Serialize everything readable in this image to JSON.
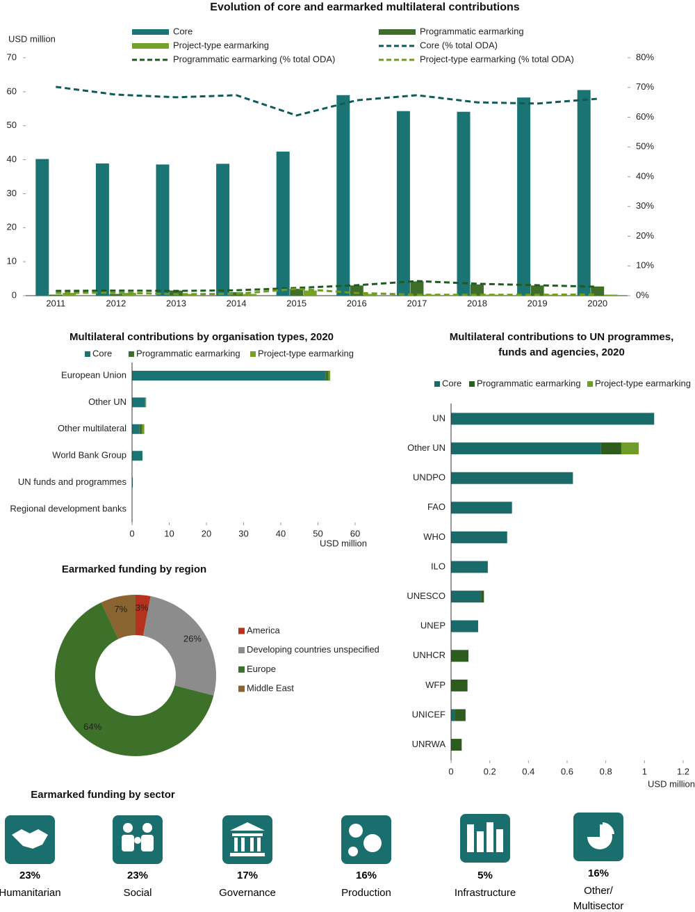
{
  "chart_data": [
    {
      "type": "bar",
      "title": "Evolution of core and earmarked multilateral contributions",
      "y_label": "USD million",
      "categories": [
        "2011",
        "2012",
        "2013",
        "2014",
        "2015",
        "2016",
        "2017",
        "2018",
        "2019",
        "2020"
      ],
      "ylim": [
        0,
        70
      ],
      "yticks": [
        0,
        10,
        20,
        30,
        40,
        50,
        60,
        70
      ],
      "y2lim": [
        0,
        80
      ],
      "y2ticks": [
        {
          "value": 0,
          "label": "0%"
        },
        {
          "value": 10,
          "label": "10%"
        },
        {
          "value": 20,
          "label": "20%"
        },
        {
          "value": 30,
          "label": "30%"
        },
        {
          "value": 40,
          "label": "40%"
        },
        {
          "value": 50,
          "label": "50%"
        },
        {
          "value": 60,
          "label": "60%"
        },
        {
          "value": 70,
          "label": "70%"
        },
        {
          "value": 80,
          "label": "80%"
        }
      ],
      "series": [
        {
          "name": "Core",
          "type": "bar",
          "color": "#1a7474",
          "values": [
            40.2,
            38.9,
            38.6,
            38.8,
            42.4,
            59.0,
            54.3,
            54.1,
            58.3,
            60.5
          ]
        },
        {
          "name": "Programmatic earmarking",
          "type": "bar",
          "color": "#3e6e2a",
          "values": [
            0.3,
            0.5,
            1.5,
            1.0,
            2.0,
            3.0,
            4.2,
            3.3,
            3.0,
            2.7
          ]
        },
        {
          "name": "Project-type earmarking",
          "type": "bar",
          "color": "#76a02c",
          "values": [
            0.8,
            0.8,
            0.5,
            0.5,
            1.5,
            0.5,
            0.3,
            0.3,
            0.3,
            0.3
          ]
        },
        {
          "name": "Core (% total ODA)",
          "type": "line",
          "axis": "y2",
          "color": "#0f5a5a",
          "values": [
            70.2,
            67.6,
            66.7,
            67.4,
            60.6,
            65.7,
            67.4,
            65.0,
            64.6,
            66.2
          ]
        },
        {
          "name": "Programmatic earmarking (% total ODA)",
          "type": "line",
          "axis": "y2",
          "color": "#1f5a1f",
          "values": [
            1.6,
            1.7,
            1.6,
            1.8,
            2.6,
            3.5,
            4.9,
            4.0,
            3.5,
            3.0
          ]
        },
        {
          "name": "Project-type earmarking (% total ODA)",
          "type": "line",
          "axis": "y2",
          "color": "#6f9b1e",
          "values": [
            0.9,
            1.0,
            0.5,
            0.6,
            2.3,
            0.9,
            0.3,
            0.3,
            0.3,
            0.4
          ]
        }
      ]
    },
    {
      "type": "barh",
      "stacked": true,
      "title": "Multilateral contributions by organisation types, 2020",
      "x_label": "USD million",
      "categories": [
        "European Union",
        "Other UN",
        "Other multilateral",
        "World Bank Group",
        "UN funds and programmes",
        "Regional development banks"
      ],
      "xlim": [
        0,
        60
      ],
      "xticks": [
        0,
        10,
        20,
        30,
        40,
        50,
        60
      ],
      "series": [
        {
          "name": "Core",
          "color": "#1a7474",
          "values": [
            52,
            3.5,
            2,
            2.8,
            0.2,
            0.05
          ]
        },
        {
          "name": "Programmatic earmarking",
          "color": "#3e6e2a",
          "values": [
            0.8,
            0.1,
            0.7,
            0,
            0,
            0
          ]
        },
        {
          "name": "Project-type earmarking",
          "color": "#76a02c",
          "values": [
            0.5,
            0.2,
            0.6,
            0,
            0,
            0
          ]
        }
      ]
    },
    {
      "type": "barh",
      "stacked": true,
      "title": "Multilateral contributions to UN programmes, funds and agencies, 2020",
      "x_label": "USD million",
      "categories": [
        "UN",
        "Other UN",
        "UNDPO",
        "FAO",
        "WHO",
        "ILO",
        "UNESCO",
        "UNEP",
        "UNHCR",
        "WFP",
        "UNICEF",
        "UNRWA"
      ],
      "xlim": [
        0,
        1.2
      ],
      "xticks": [
        0,
        0.2,
        0.4,
        0.6,
        0.8,
        1,
        1.2
      ],
      "series": [
        {
          "name": "Core",
          "color": "#1a6a6a",
          "values": [
            1.05,
            0.775,
            0.63,
            0.315,
            0.29,
            0.19,
            0.155,
            0.14,
            0,
            0,
            0.02,
            0
          ]
        },
        {
          "name": "Programmatic earmarking",
          "color": "#2e5c1e",
          "values": [
            0,
            0.105,
            0,
            0,
            0,
            0,
            0.015,
            0,
            0.09,
            0.085,
            0.055,
            0.055
          ]
        },
        {
          "name": "Project-type earmarking",
          "color": "#6f9b28",
          "values": [
            0,
            0.09,
            0,
            0,
            0,
            0,
            0,
            0,
            0,
            0,
            0,
            0
          ]
        }
      ]
    },
    {
      "type": "donut",
      "title": "Earmarked funding by region",
      "categories": [
        "America",
        "Developing countries unspecified",
        "Europe",
        "Middle East"
      ],
      "values": [
        3,
        26,
        64,
        7
      ],
      "value_labels": [
        "3%",
        "26%",
        "64%",
        "7%"
      ],
      "colors": [
        "#b5331e",
        "#8c8c8c",
        "#3d7028",
        "#8a6430"
      ],
      "label_colors": [
        "#222222",
        "#222222",
        "#ffffff",
        "#222222"
      ]
    },
    {
      "type": "icons",
      "title": "Earmarked funding by sector",
      "categories": [
        "Humanitarian",
        "Social",
        "Governance",
        "Production",
        "Infrastructure",
        "Other/ Multisector"
      ],
      "values": [
        23,
        23,
        17,
        16,
        5,
        16
      ],
      "value_labels": [
        "23%",
        "23%",
        "17%",
        "16%",
        "5%",
        "16%"
      ]
    }
  ]
}
